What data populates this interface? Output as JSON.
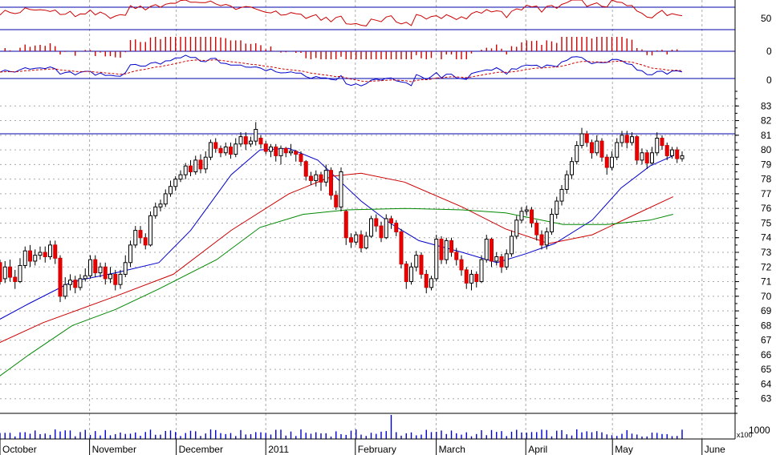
{
  "chart_data": {
    "type": "candlestick",
    "title": "",
    "panels": {
      "rsi": {
        "label_value": "50",
        "ylim": [
          0,
          100
        ],
        "level": 70
      },
      "histogram": {
        "label_value": "0"
      },
      "macd": {
        "label_value": "0"
      },
      "price": {
        "ylim": [
          62,
          84
        ],
        "ticks": [
          63,
          64,
          65,
          66,
          67,
          68,
          69,
          70,
          71,
          72,
          73,
          74,
          75,
          76,
          77,
          78,
          79,
          80,
          81,
          82,
          83
        ],
        "tick_labels": [
          "63",
          "64",
          "65",
          "66",
          "67",
          "68",
          "69",
          "70",
          "71",
          "72",
          "73",
          "74",
          "75",
          "76",
          "77",
          "78",
          "79",
          "80",
          "81",
          "82",
          "83"
        ],
        "reference_line": 81.1
      },
      "volume": {
        "label_value": "1000",
        "scale_label": "x100"
      }
    },
    "months": [
      {
        "label": "October",
        "day": 0
      },
      {
        "label": "November",
        "day": 31
      },
      {
        "label": "December",
        "day": 61
      },
      {
        "label": "2011",
        "day": 92
      },
      {
        "label": "February",
        "day": 123
      },
      {
        "label": "March",
        "day": 151
      },
      {
        "label": "April",
        "day": 182
      },
      {
        "label": "May",
        "day": 212
      },
      {
        "label": "June",
        "day": 243
      }
    ],
    "series": [
      {
        "name": "",
        "color": "#0000cc",
        "values": [
          [
            -6,
            67.8
          ],
          [
            10,
            69.5
          ],
          [
            25,
            71.0
          ],
          [
            40,
            71.6
          ],
          [
            55,
            72.3
          ],
          [
            66,
            74.5
          ],
          [
            80,
            78.3
          ],
          [
            90,
            80.0
          ],
          [
            100,
            80.1
          ],
          [
            110,
            79.3
          ],
          [
            118,
            77.8
          ],
          [
            125,
            76.5
          ],
          [
            135,
            75.0
          ],
          [
            145,
            73.8
          ],
          [
            160,
            73.0
          ],
          [
            172,
            72.3
          ],
          [
            182,
            72.9
          ],
          [
            192,
            73.6
          ],
          [
            205,
            75.2
          ],
          [
            215,
            77.4
          ],
          [
            225,
            78.9
          ],
          [
            233,
            79.6
          ]
        ]
      },
      {
        "name": "",
        "color": "#cc0000",
        "values": [
          [
            -6,
            66.3
          ],
          [
            15,
            68.2
          ],
          [
            40,
            70.0
          ],
          [
            60,
            71.5
          ],
          [
            80,
            74.5
          ],
          [
            100,
            77.0
          ],
          [
            115,
            78.2
          ],
          [
            125,
            78.4
          ],
          [
            140,
            77.8
          ],
          [
            160,
            76.1
          ],
          [
            175,
            74.6
          ],
          [
            190,
            73.6
          ],
          [
            205,
            74.2
          ],
          [
            220,
            75.6
          ],
          [
            233,
            76.8
          ]
        ]
      },
      {
        "name": "",
        "color": "#008800",
        "values": [
          [
            -6,
            63.7
          ],
          [
            10,
            66.0
          ],
          [
            25,
            68.0
          ],
          [
            40,
            69.1
          ],
          [
            55,
            70.5
          ],
          [
            75,
            72.5
          ],
          [
            90,
            74.7
          ],
          [
            105,
            75.6
          ],
          [
            120,
            75.9
          ],
          [
            140,
            76.0
          ],
          [
            160,
            75.9
          ],
          [
            175,
            75.7
          ],
          [
            185,
            75.3
          ],
          [
            195,
            74.9
          ],
          [
            210,
            74.9
          ],
          [
            225,
            75.2
          ],
          [
            233,
            75.6
          ]
        ]
      }
    ],
    "candles": [
      [
        72.3,
        71.0,
        72.5,
        70.8
      ],
      [
        71.2,
        72.0,
        72.4,
        70.9
      ],
      [
        72.0,
        71.3,
        72.5,
        71.0
      ],
      [
        71.3,
        71.0,
        71.8,
        70.5
      ],
      [
        71.0,
        72.1,
        72.6,
        70.9
      ],
      [
        72.1,
        73.1,
        73.4,
        71.9
      ],
      [
        73.1,
        72.4,
        73.5,
        72.0
      ],
      [
        72.4,
        72.8,
        73.2,
        72.1
      ],
      [
        72.8,
        73.0,
        73.4,
        72.5
      ],
      [
        73.0,
        72.7,
        73.4,
        72.3
      ],
      [
        72.7,
        73.5,
        73.8,
        72.5
      ],
      [
        73.5,
        72.6,
        73.8,
        72.2
      ],
      [
        72.6,
        70.0,
        72.8,
        69.6
      ],
      [
        70.0,
        70.8,
        71.3,
        69.8
      ],
      [
        70.8,
        71.1,
        71.5,
        70.4
      ],
      [
        71.1,
        70.6,
        71.4,
        70.2
      ],
      [
        70.6,
        71.2,
        71.5,
        70.4
      ],
      [
        71.2,
        71.4,
        71.9,
        71.0
      ],
      [
        71.4,
        72.5,
        72.8,
        71.2
      ],
      [
        72.5,
        71.6,
        72.8,
        71.3
      ],
      [
        71.6,
        72.0,
        72.3,
        71.3
      ],
      [
        72.0,
        71.2,
        72.3,
        70.8
      ],
      [
        71.2,
        71.5,
        72.0,
        70.9
      ],
      [
        71.5,
        70.8,
        71.8,
        70.4
      ],
      [
        70.8,
        71.5,
        71.8,
        70.5
      ],
      [
        71.5,
        72.3,
        72.8,
        71.3
      ],
      [
        72.3,
        73.5,
        73.8,
        72.0
      ],
      [
        73.5,
        74.5,
        74.8,
        73.3
      ],
      [
        74.5,
        74.0,
        74.8,
        73.6
      ],
      [
        74.0,
        73.5,
        74.3,
        73.2
      ],
      [
        73.5,
        75.5,
        75.8,
        73.4
      ],
      [
        75.5,
        76.1,
        76.4,
        75.3
      ],
      [
        76.1,
        76.3,
        76.6,
        75.8
      ],
      [
        76.3,
        77.0,
        77.3,
        76.1
      ],
      [
        77.0,
        77.5,
        77.9,
        76.8
      ],
      [
        77.5,
        78.0,
        78.2,
        77.2
      ],
      [
        78.0,
        78.3,
        78.6,
        77.8
      ],
      [
        78.3,
        78.9,
        79.1,
        78.0
      ],
      [
        78.9,
        78.5,
        79.3,
        78.2
      ],
      [
        78.5,
        79.3,
        79.6,
        78.3
      ],
      [
        79.3,
        78.7,
        79.7,
        78.4
      ],
      [
        78.7,
        79.5,
        79.9,
        78.4
      ],
      [
        79.5,
        80.5,
        80.7,
        79.3
      ],
      [
        80.5,
        80.1,
        80.8,
        79.8
      ],
      [
        80.1,
        79.8,
        80.3,
        79.5
      ],
      [
        79.8,
        80.2,
        80.5,
        79.6
      ],
      [
        80.2,
        79.7,
        80.5,
        79.4
      ],
      [
        79.7,
        80.4,
        80.8,
        79.5
      ],
      [
        80.4,
        80.9,
        81.2,
        80.2
      ],
      [
        80.9,
        80.4,
        81.2,
        80.0
      ],
      [
        80.4,
        80.6,
        80.9,
        80.2
      ],
      [
        80.6,
        81.4,
        81.9,
        80.3
      ],
      [
        80.8,
        80.4,
        81.0,
        80.1
      ],
      [
        80.4,
        79.9,
        80.6,
        79.7
      ],
      [
        79.9,
        80.2,
        80.4,
        79.5
      ],
      [
        80.2,
        79.6,
        80.4,
        79.2
      ],
      [
        79.6,
        80.1,
        80.3,
        79.0
      ],
      [
        80.1,
        79.8,
        80.2,
        79.5
      ],
      [
        79.8,
        79.9,
        80.4,
        79.6
      ],
      [
        79.9,
        79.7,
        80.0,
        79.2
      ],
      [
        79.7,
        79.2,
        79.9,
        78.9
      ],
      [
        79.2,
        78.2,
        79.3,
        77.9
      ],
      [
        78.2,
        77.9,
        78.5,
        77.6
      ],
      [
        77.9,
        78.3,
        78.6,
        77.5
      ],
      [
        78.3,
        77.8,
        78.5,
        77.2
      ],
      [
        77.8,
        78.6,
        79.0,
        77.5
      ],
      [
        78.6,
        76.9,
        78.8,
        76.6
      ],
      [
        76.9,
        76.1,
        77.2,
        75.9
      ],
      [
        76.1,
        78.5,
        78.8,
        75.8
      ],
      [
        75.8,
        74.0,
        75.9,
        73.5
      ],
      [
        74.0,
        73.7,
        74.3,
        73.3
      ],
      [
        73.7,
        74.2,
        74.4,
        73.5
      ],
      [
        74.2,
        73.3,
        74.5,
        73.0
      ],
      [
        73.3,
        74.1,
        74.4,
        73.2
      ],
      [
        74.1,
        75.3,
        75.5,
        74.0
      ],
      [
        75.3,
        74.8,
        75.6,
        74.4
      ],
      [
        74.8,
        74.0,
        75.1,
        73.7
      ],
      [
        74.0,
        75.3,
        75.6,
        73.9
      ],
      [
        75.3,
        75.0,
        75.5,
        74.6
      ],
      [
        75.0,
        74.4,
        75.2,
        74.1
      ],
      [
        74.4,
        72.2,
        74.6,
        71.9
      ],
      [
        72.2,
        71.0,
        72.4,
        70.5
      ],
      [
        71.0,
        72.0,
        72.3,
        70.8
      ],
      [
        72.0,
        72.8,
        73.1,
        71.7
      ],
      [
        72.8,
        71.5,
        73.0,
        71.2
      ],
      [
        71.5,
        70.6,
        71.8,
        70.2
      ],
      [
        70.6,
        71.2,
        71.4,
        70.4
      ],
      [
        71.2,
        73.9,
        74.2,
        71.0
      ],
      [
        73.9,
        72.5,
        74.1,
        72.2
      ],
      [
        72.5,
        73.8,
        74.0,
        72.2
      ],
      [
        73.8,
        73.0,
        74.0,
        72.7
      ],
      [
        73.0,
        72.5,
        73.3,
        72.1
      ],
      [
        72.5,
        71.8,
        72.8,
        71.4
      ],
      [
        71.8,
        70.9,
        72.0,
        70.5
      ],
      [
        70.9,
        71.5,
        71.8,
        70.4
      ],
      [
        71.5,
        71.0,
        71.7,
        70.6
      ],
      [
        71.0,
        72.5,
        72.8,
        70.9
      ],
      [
        72.5,
        73.9,
        74.2,
        72.3
      ],
      [
        73.9,
        72.4,
        74.0,
        72.0
      ],
      [
        72.4,
        72.7,
        73.0,
        72.1
      ],
      [
        72.7,
        72.0,
        72.9,
        71.6
      ],
      [
        72.0,
        72.9,
        73.2,
        71.8
      ],
      [
        72.9,
        74.1,
        74.5,
        72.7
      ],
      [
        74.1,
        75.2,
        75.5,
        73.9
      ],
      [
        75.2,
        75.8,
        76.1,
        75.0
      ],
      [
        75.8,
        75.9,
        76.2,
        75.5
      ],
      [
        75.9,
        75.0,
        76.1,
        74.7
      ],
      [
        75.0,
        74.2,
        75.2,
        73.8
      ],
      [
        74.2,
        73.5,
        74.5,
        73.2
      ],
      [
        73.5,
        74.4,
        74.7,
        73.2
      ],
      [
        74.4,
        75.6,
        76.0,
        74.2
      ],
      [
        75.6,
        76.5,
        76.8,
        75.3
      ],
      [
        76.5,
        77.3,
        77.6,
        76.2
      ],
      [
        77.3,
        78.3,
        78.6,
        77.0
      ],
      [
        78.3,
        79.2,
        79.5,
        78.0
      ],
      [
        79.2,
        80.3,
        80.6,
        79.0
      ],
      [
        80.3,
        81.1,
        81.5,
        80.1
      ],
      [
        81.1,
        80.5,
        81.3,
        80.2
      ],
      [
        80.5,
        79.8,
        80.7,
        79.4
      ],
      [
        79.8,
        80.6,
        81.0,
        79.6
      ],
      [
        80.6,
        79.5,
        80.8,
        79.2
      ],
      [
        79.5,
        78.8,
        79.7,
        78.3
      ],
      [
        78.8,
        79.5,
        79.9,
        78.6
      ],
      [
        79.5,
        80.5,
        80.8,
        79.3
      ],
      [
        80.5,
        81.0,
        81.3,
        80.2
      ],
      [
        81.0,
        80.5,
        81.3,
        80.1
      ],
      [
        80.5,
        80.9,
        81.2,
        80.3
      ],
      [
        80.9,
        79.3,
        81.0,
        79.0
      ],
      [
        79.3,
        79.8,
        80.1,
        79.0
      ],
      [
        79.8,
        79.1,
        80.0,
        78.7
      ],
      [
        79.1,
        79.8,
        80.2,
        79.0
      ],
      [
        79.8,
        80.8,
        81.2,
        79.6
      ],
      [
        80.8,
        80.3,
        81.0,
        80.0
      ],
      [
        80.3,
        79.6,
        80.5,
        79.3
      ],
      [
        79.6,
        80.0,
        80.2,
        79.4
      ],
      [
        80.0,
        79.4,
        80.2,
        79.1
      ],
      [
        79.4,
        79.6,
        79.9,
        79.2
      ]
    ]
  }
}
